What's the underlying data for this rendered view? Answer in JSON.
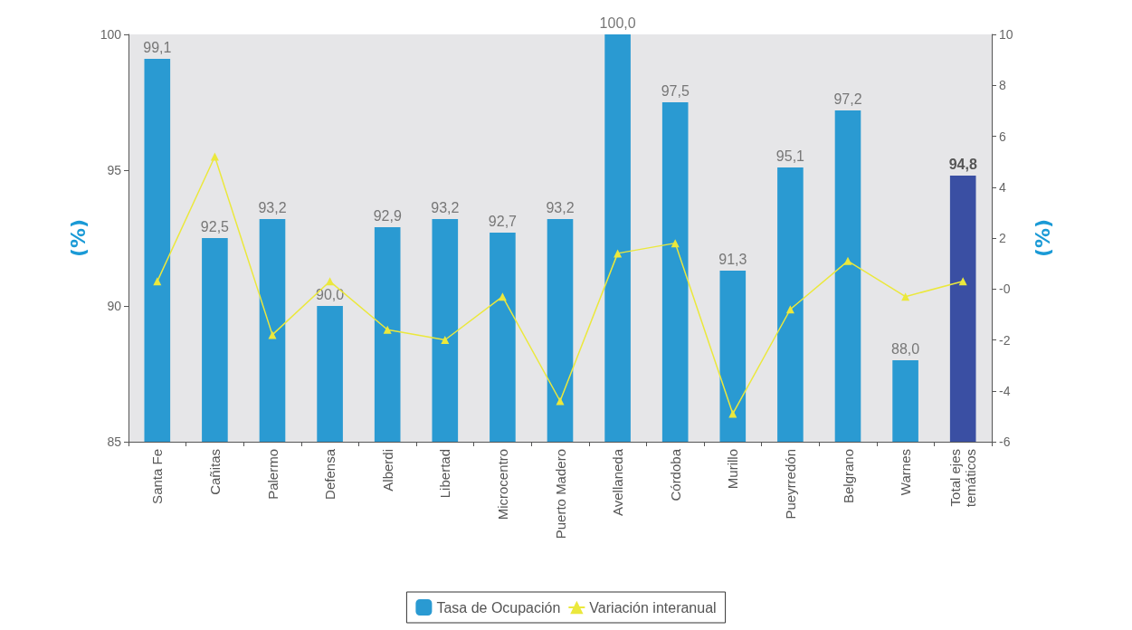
{
  "chart_data": {
    "type": "bar",
    "categories": [
      "Santa Fe",
      "Cañitas",
      "Palermo",
      "Defensa",
      "Alberdi",
      "Libertad",
      "Microcentro",
      "Puerto Madero",
      "Avellaneda",
      "Córdoba",
      "Murillo",
      "Pueyrredón",
      "Belgrano",
      "Warnes",
      "Total ejes\ntemáticos"
    ],
    "ylabel": "(%)",
    "y2label": "(%)",
    "series": [
      {
        "name": "Tasa de Ocupación",
        "color": "#2a9ad2",
        "colors": [
          "#2a9ad2",
          "#2a9ad2",
          "#2a9ad2",
          "#2a9ad2",
          "#2a9ad2",
          "#2a9ad2",
          "#2a9ad2",
          "#2a9ad2",
          "#2a9ad2",
          "#2a9ad2",
          "#2a9ad2",
          "#2a9ad2",
          "#2a9ad2",
          "#2a9ad2",
          "#3a4fa3"
        ],
        "values": [
          99.1,
          92.5,
          93.2,
          90.0,
          92.9,
          93.2,
          92.7,
          93.2,
          100.0,
          97.5,
          91.3,
          95.1,
          97.2,
          88.0,
          94.8
        ],
        "value_labels": [
          "99,1",
          "92,5",
          "93,2",
          "90,0",
          "92,9",
          "93,2",
          "92,7",
          "93,2",
          "100,0",
          "97,5",
          "91,3",
          "95,1",
          "97,2",
          "88,0",
          "94,8"
        ]
      },
      {
        "name": "Variación interanual",
        "type": "line",
        "axis": "y2",
        "color": "#ebe83c",
        "marker": "triangle",
        "values": [
          0.3,
          5.2,
          -1.8,
          0.3,
          -1.6,
          -2.0,
          -0.3,
          -4.4,
          1.4,
          1.8,
          -4.9,
          -0.8,
          1.1,
          -0.3,
          0.3
        ]
      }
    ],
    "ylim": [
      85,
      100
    ],
    "yticks": [
      85,
      90,
      95,
      100
    ],
    "y2lim": [
      -6,
      10
    ],
    "y2ticks": [
      -6,
      -4,
      -2,
      {
        "value": 0,
        "label": "-0"
      },
      2,
      4,
      6,
      8,
      10
    ],
    "grid": false,
    "legend": "bottom"
  }
}
